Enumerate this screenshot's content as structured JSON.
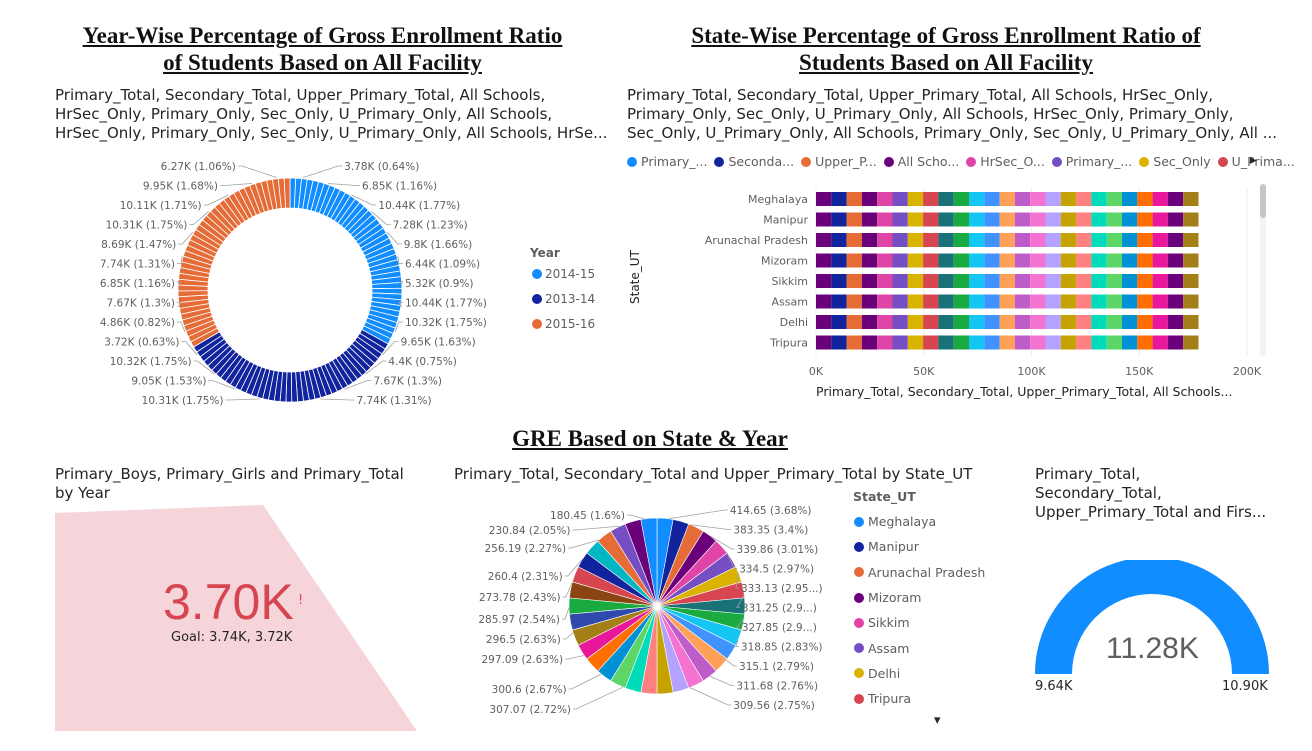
{
  "titles": {
    "year_wise_line1": "Year-Wise Percentage of Gross Enrollment Ratio",
    "year_wise_line2": "of Students Based on All Facility",
    "state_wise_line1": "State-Wise Percentage of Gross Enrollment Ratio of",
    "state_wise_line2": "Students Based on All Facility",
    "gre": "GRE Based on State & Year"
  },
  "donut": {
    "title_lines": [
      "Primary_Total, Secondary_Total, Upper_Primary_Total, All Schools,",
      "HrSec_Only, Primary_Only, Sec_Only, U_Primary_Only, All Schools,",
      "HrSec_Only, Primary_Only, Sec_Only, U_Primary_Only, All Schools, HrSe..."
    ],
    "legend_title": "Year"
  },
  "bar": {
    "title_lines": [
      "Primary_Total, Secondary_Total, Upper_Primary_Total, All Schools, HrSec_Only,",
      "Primary_Only, Sec_Only, U_Primary_Only, All Schools, HrSec_Only, Primary_Only,",
      "Sec_Only, U_Primary_Only, All Schools, Primary_Only, Sec_Only, U_Primary_Only, All ..."
    ],
    "legend_items": [
      "Primary_...",
      "Seconda...",
      "Upper_P...",
      "All Scho...",
      "HrSec_O...",
      "Primary_...",
      "Sec_Only",
      "U_Prima..."
    ],
    "legend_arrow": "▸"
  },
  "card": {
    "title_lines": [
      "Primary_Boys, Primary_Girls and Primary_Total",
      "by Year"
    ],
    "value": "3.70K",
    "alert": "!",
    "goal": "Goal: 3.74K, 3.72K"
  },
  "pie": {
    "title": "Primary_Total, Secondary_Total and Upper_Primary_Total by State_UT",
    "legend_title": "State_UT",
    "legend_more": "▾"
  },
  "gauge": {
    "title_lines": [
      "Primary_Total,",
      "Secondary_Total,",
      "Upper_Primary_Total and Firs..."
    ],
    "value": "11.28K",
    "min_label": "9.64K",
    "max_label": "10.90K"
  },
  "chart_data": [
    {
      "type": "pie",
      "name": "year-donut",
      "legend": [
        "2014-15",
        "2013-14",
        "2015-16"
      ],
      "colors": [
        "#118DFF",
        "#12239E",
        "#E66C37"
      ],
      "slices": [
        {
          "series": "2014-15",
          "value": 3.78,
          "label": "3.78K (0.64%)"
        },
        {
          "series": "2014-15",
          "value": 6.85,
          "label": "6.85K (1.16%)"
        },
        {
          "series": "2014-15",
          "value": 10.44,
          "label": "10.44K (1.77%)"
        },
        {
          "series": "2014-15",
          "value": 7.28,
          "label": "7.28K (1.23%)"
        },
        {
          "series": "2014-15",
          "value": 9.8,
          "label": "9.8K (1.66%)"
        },
        {
          "series": "2014-15",
          "value": 6.44,
          "label": "6.44K (1.09%)"
        },
        {
          "series": "2014-15",
          "value": 5.32,
          "label": "5.32K (0.9%)"
        },
        {
          "series": "2014-15",
          "value": 10.44,
          "label": "10.44K (1.77%)"
        },
        {
          "series": "2014-15",
          "value": 10.32,
          "label": "10.32K (1.75%)"
        },
        {
          "series": "2014-15",
          "value": 9.65,
          "label": "9.65K (1.63%)"
        },
        {
          "series": "2014-15",
          "value": 4.4,
          "label": "4.4K (0.75%)"
        },
        {
          "series": "2013-14",
          "value": 7.67,
          "label": "7.67K (1.3%)"
        },
        {
          "series": "2013-14",
          "value": 7.74,
          "label": "7.74K (1.31%)"
        },
        {
          "series": "2013-14",
          "value": 10.31,
          "label": "10.31K (1.75%)"
        },
        {
          "series": "2013-14",
          "value": 9.05,
          "label": "9.05K (1.53%)"
        },
        {
          "series": "2013-14",
          "value": 10.32,
          "label": "10.32K (1.75%)"
        },
        {
          "series": "2015-16",
          "value": 3.72,
          "label": "3.72K (0.63%)"
        },
        {
          "series": "2015-16",
          "value": 4.86,
          "label": "4.86K (0.82%)"
        },
        {
          "series": "2015-16",
          "value": 7.67,
          "label": "7.67K (1.3%)"
        },
        {
          "series": "2015-16",
          "value": 6.85,
          "label": "6.85K (1.16%)"
        },
        {
          "series": "2015-16",
          "value": 7.74,
          "label": "7.74K (1.31%)"
        },
        {
          "series": "2015-16",
          "value": 8.69,
          "label": "8.69K (1.47%)"
        },
        {
          "series": "2015-16",
          "value": 10.31,
          "label": "10.31K (1.75%)"
        },
        {
          "series": "2015-16",
          "value": 10.11,
          "label": "10.11K (1.71%)"
        },
        {
          "series": "2015-16",
          "value": 9.95,
          "label": "9.95K (1.68%)"
        },
        {
          "series": "2015-16",
          "value": 6.27,
          "label": "6.27K (1.06%)"
        }
      ],
      "series_share": [
        0.33,
        0.335,
        0.335
      ]
    },
    {
      "type": "bar",
      "name": "state-stacked-bar",
      "orientation": "horizontal",
      "stacked": true,
      "ylabel": "State_UT",
      "xlabel": "Primary_Total, Secondary_Total, Upper_Primary_Total, All Schools...",
      "categories": [
        "Meghalaya",
        "Manipur",
        "Arunachal Pradesh",
        "Mizoram",
        "Sikkim",
        "Assam",
        "Delhi",
        "Tripura"
      ],
      "xlim": [
        0,
        200000
      ],
      "xticks": [
        0,
        50000,
        100000,
        150000,
        200000
      ],
      "xtick_labels": [
        "0K",
        "50K",
        "100K",
        "150K",
        "200K"
      ],
      "segment_colors": [
        "#6B007B",
        "#12239E",
        "#E66C37",
        "#6B007B",
        "#E044A7",
        "#744EC2",
        "#D9B300",
        "#D64550",
        "#197278",
        "#1AAB40",
        "#15C6F4",
        "#4092FF",
        "#FFA058",
        "#BE5DC9",
        "#F472D0",
        "#B5A1FF",
        "#C4A200",
        "#FF8080",
        "#00DBBC",
        "#5BD667",
        "#0091D5",
        "#FF6E00",
        "#E8179B",
        "#6B007B",
        "#A38017"
      ],
      "segment_value_each": 7100,
      "total_per_state": 177500
    },
    {
      "type": "pie",
      "name": "state-pie",
      "legend": [
        "Meghalaya",
        "Manipur",
        "Arunachal Pradesh",
        "Mizoram",
        "Sikkim",
        "Assam",
        "Delhi",
        "Tripura"
      ],
      "legend_colors": [
        "#118DFF",
        "#12239E",
        "#E66C37",
        "#6B007B",
        "#E044A7",
        "#744EC2",
        "#D9B300",
        "#D64550"
      ],
      "slices": [
        {
          "value": 414.65,
          "label": "414.65 (3.68%)"
        },
        {
          "value": 383.35,
          "label": "383.35 (3.4%)"
        },
        {
          "value": 339.86,
          "label": "339.86 (3.01%)"
        },
        {
          "value": 334.5,
          "label": "334.5 (2.97%)"
        },
        {
          "value": 333.13,
          "label": "333.13 (2.95...)"
        },
        {
          "value": 331.25,
          "label": "331.25 (2.9...)"
        },
        {
          "value": 327.85,
          "label": "327.85 (2.9...)"
        },
        {
          "value": 318.85,
          "label": "318.85 (2.83%)"
        },
        {
          "value": 315.1,
          "label": "315.1 (2.79%)"
        },
        {
          "value": 311.68,
          "label": "311.68 (2.76%)"
        },
        {
          "value": 309.56,
          "label": "309.56 (2.75%)"
        },
        {
          "value": 307.07,
          "label": "307.07 (2.72%)"
        },
        {
          "value": 300.6,
          "label": "300.6 (2.67%)"
        },
        {
          "value": 297.09,
          "label": "297.09 (2.63%)"
        },
        {
          "value": 296.5,
          "label": "296.5 (2.63%)"
        },
        {
          "value": 285.97,
          "label": "285.97 (2.54%)"
        },
        {
          "value": 273.78,
          "label": "273.78 (2.43%)"
        },
        {
          "value": 260.4,
          "label": "260.4 (2.31%)"
        },
        {
          "value": 256.19,
          "label": "256.19 (2.27%)"
        },
        {
          "value": 230.84,
          "label": "230.84 (2.05%)"
        },
        {
          "value": 180.45,
          "label": "180.45 (1.6%)"
        }
      ],
      "unlabeled_remainder_percent": 37.5
    },
    {
      "type": "gauge",
      "name": "gauge",
      "value": 11.28,
      "min": 9.64,
      "max": 10.9,
      "fill_fraction": 1.0,
      "color": "#118DFF"
    }
  ]
}
